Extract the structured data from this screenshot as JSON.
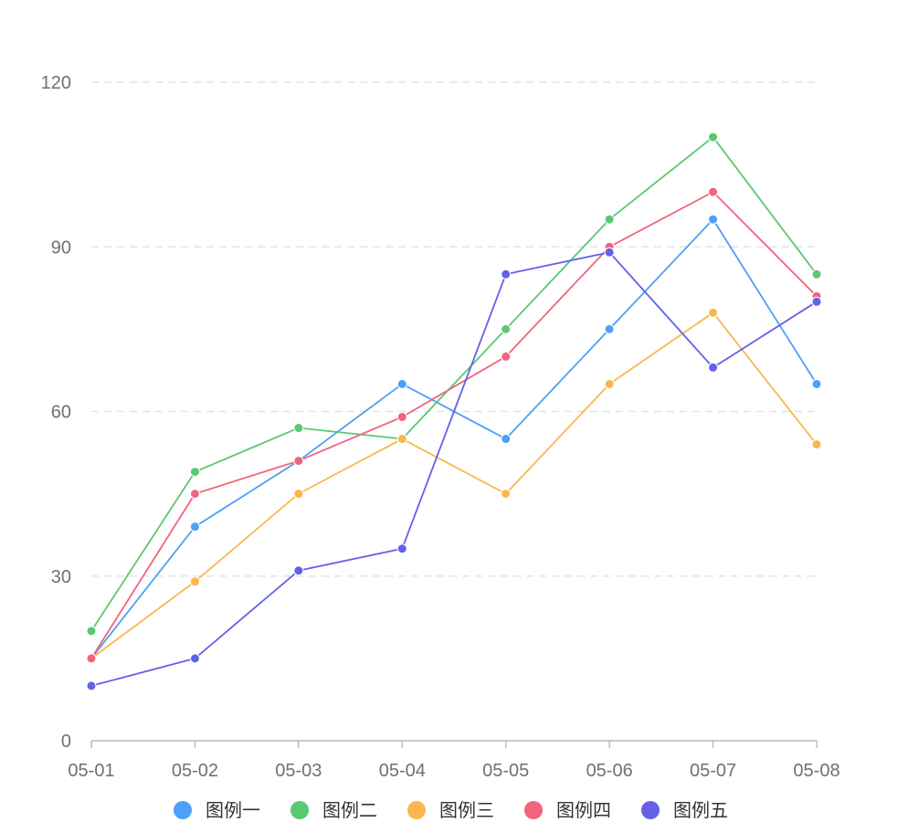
{
  "chart_data": {
    "type": "line",
    "title": "",
    "xlabel": "",
    "ylabel": "",
    "categories": [
      "05-01",
      "05-02",
      "05-03",
      "05-04",
      "05-05",
      "05-06",
      "05-07",
      "05-08"
    ],
    "ylim": [
      0,
      120
    ],
    "yticks": [
      0,
      30,
      60,
      90,
      120
    ],
    "ytick_labels": [
      "0",
      "30",
      "60",
      "90",
      "120"
    ],
    "grid": true,
    "legend_position": "bottom-center",
    "series": [
      {
        "name": "图例一",
        "color": "#4ba1f6",
        "values": [
          15,
          39,
          51,
          65,
          55,
          75,
          95,
          65
        ]
      },
      {
        "name": "图例二",
        "color": "#5ac96f",
        "values": [
          20,
          49,
          57,
          55,
          75,
          95,
          110,
          85
        ]
      },
      {
        "name": "图例三",
        "color": "#fab64c",
        "values": [
          15,
          29,
          45,
          55,
          45,
          65,
          78,
          54
        ]
      },
      {
        "name": "图例四",
        "color": "#f1647c",
        "values": [
          15,
          45,
          51,
          59,
          70,
          90,
          100,
          81
        ]
      },
      {
        "name": "图例五",
        "color": "#6461e8",
        "values": [
          10,
          15,
          31,
          35,
          85,
          89,
          68,
          80
        ]
      }
    ]
  }
}
